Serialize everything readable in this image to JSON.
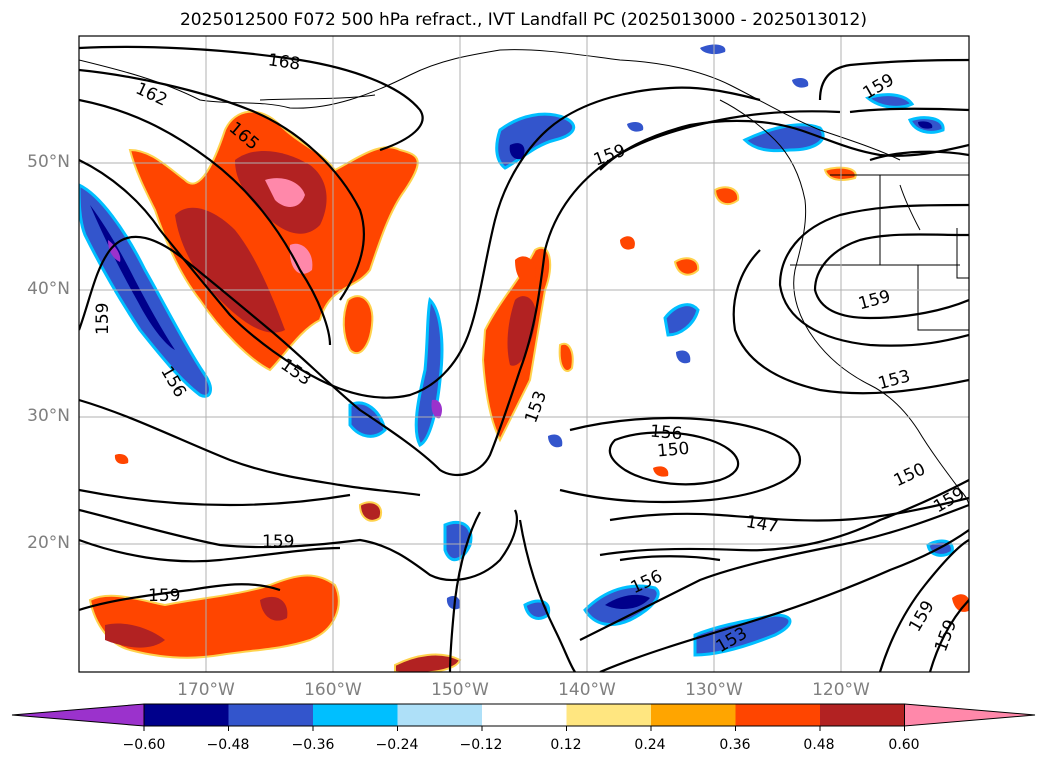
{
  "title": "2025012500 F072 500 hPa refract., IVT Landfall PC (2025013000 - 2025013012)",
  "axes": {
    "lat_labels": [
      "50°N",
      "40°N",
      "30°N",
      "20°N"
    ],
    "lon_labels": [
      "170°W",
      "160°W",
      "150°W",
      "140°W",
      "130°W",
      "120°W"
    ]
  },
  "contour_labels": [
    "168",
    "162",
    "165",
    "159",
    "159",
    "159",
    "159",
    "156",
    "153",
    "153",
    "156",
    "150",
    "153",
    "150",
    "147",
    "159",
    "159",
    "159",
    "156",
    "153",
    "159",
    "159"
  ],
  "colorbar": {
    "tick_labels": [
      "−0.60",
      "−0.48",
      "−0.36",
      "−0.24",
      "−0.12",
      "0.12",
      "0.24",
      "0.36",
      "0.48",
      "0.60"
    ],
    "colors": [
      "#9b32cc",
      "#00008b",
      "#3355cc",
      "#00bfff",
      "#aee0f8",
      "#ffffff",
      "#ffe680",
      "#ffa500",
      "#ff4500",
      "#b22222",
      "#ff88aa"
    ]
  }
}
